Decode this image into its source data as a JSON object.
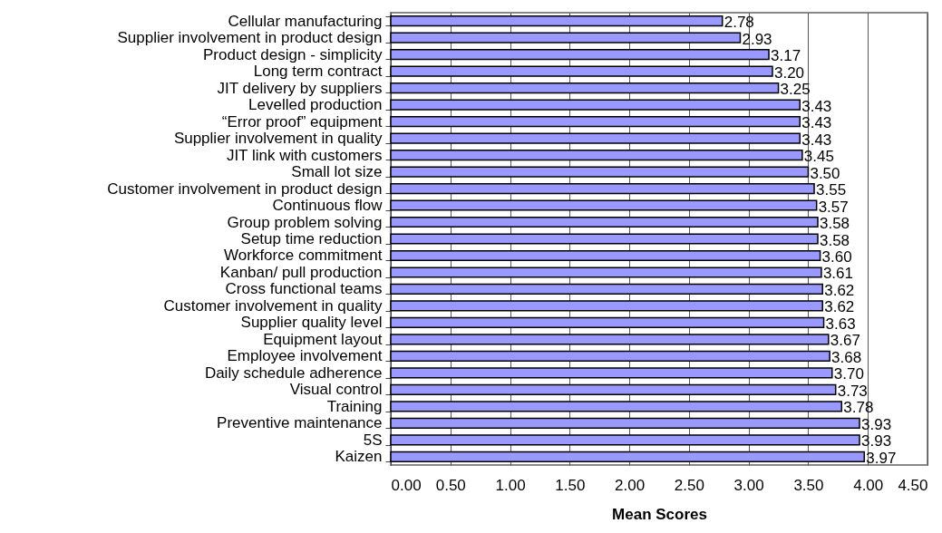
{
  "chart_data": {
    "type": "bar",
    "orientation": "horizontal",
    "xlabel": "Mean Scores",
    "categories": [
      "Cellular manufacturing",
      "Supplier involvement in product design",
      "Product design - simplicity",
      "Long term contract",
      "JIT delivery by suppliers",
      "Levelled production",
      "“Error proof” equipment",
      "Supplier involvement in quality",
      "JIT link with customers",
      "Small lot size",
      "Customer involvement in product design",
      "Continuous flow",
      "Group problem solving",
      "Setup time reduction",
      "Workforce commitment",
      "Kanban/ pull production",
      "Cross functional teams",
      "Customer involvement in quality",
      "Supplier quality level",
      "Equipment layout",
      "Employee involvement",
      "Daily schedule adherence",
      "Visual control",
      "Training",
      "Preventive maintenance",
      "5S",
      "Kaizen"
    ],
    "values": [
      2.78,
      2.93,
      3.17,
      3.2,
      3.25,
      3.43,
      3.43,
      3.43,
      3.45,
      3.5,
      3.55,
      3.57,
      3.58,
      3.58,
      3.6,
      3.61,
      3.62,
      3.62,
      3.63,
      3.67,
      3.68,
      3.7,
      3.73,
      3.78,
      3.93,
      3.93,
      3.97
    ],
    "value_labels": [
      "2.78",
      "2.93",
      "3.17",
      "3.20",
      "3.25",
      "3.43",
      "3.43",
      "3.43",
      "3.45",
      "3.50",
      "3.55",
      "3.57",
      "3.58",
      "3.58",
      "3.60",
      "3.61",
      "3.62",
      "3.62",
      "3.63",
      "3.67",
      "3.68",
      "3.70",
      "3.73",
      "3.78",
      "3.93",
      "3.93",
      "3.97"
    ],
    "color": "#9999ff",
    "xlim": [
      0,
      4.5
    ],
    "xticks": [
      {
        "value": 0,
        "label": "0.00"
      },
      {
        "value": 0.5,
        "label": "0.50"
      },
      {
        "value": 1,
        "label": "1.00"
      },
      {
        "value": 1.5,
        "label": "1.50"
      },
      {
        "value": 2,
        "label": "2.00"
      },
      {
        "value": 2.5,
        "label": "2.50"
      },
      {
        "value": 3,
        "label": "3.00"
      },
      {
        "value": 3.5,
        "label": "3.50"
      },
      {
        "value": 4,
        "label": "4.00"
      },
      {
        "value": 4.5,
        "label": "4.50"
      }
    ],
    "grid": "x"
  }
}
